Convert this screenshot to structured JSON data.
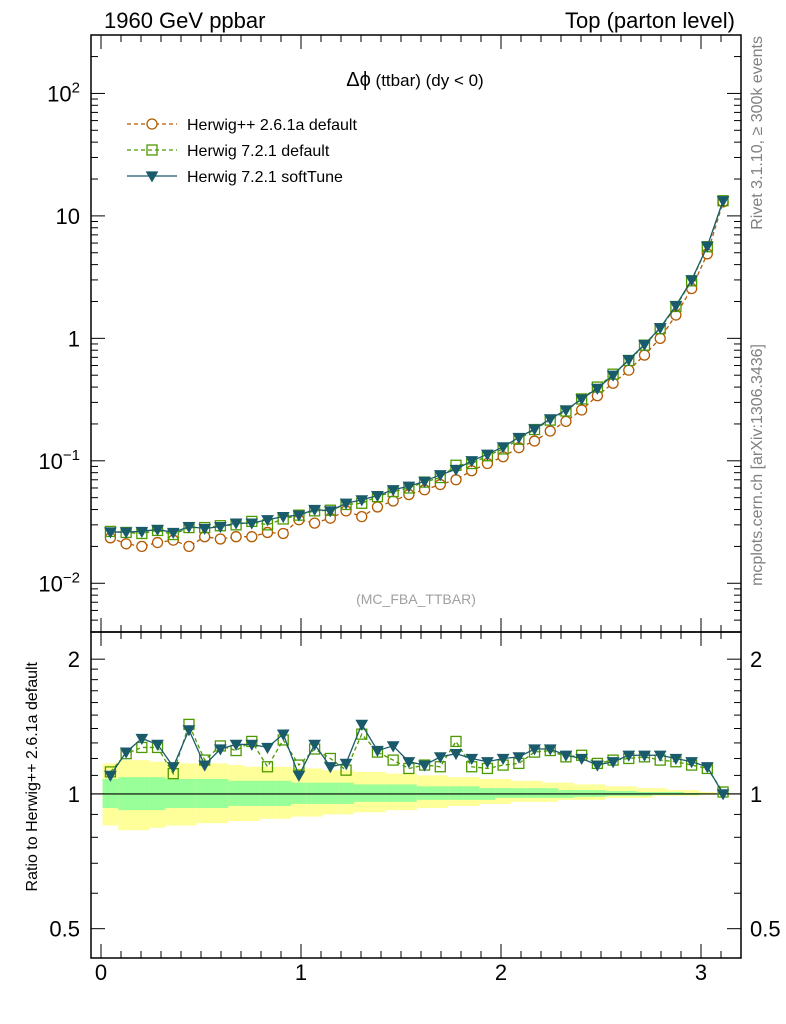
{
  "header": {
    "left": "1960 GeV ppbar",
    "right": "Top (parton level)"
  },
  "side": {
    "top": "Rivet 3.1.10, ≥ 300k events",
    "bottom": "mcplots.cern.ch [arXiv:1306.3436]"
  },
  "plot_title_main": "Δϕ",
  "plot_title_rest": " (ttbar) (dy < 0)",
  "analysis": "(MC_FBA_TTBAR)",
  "ratio_ylabel": "Ratio to Herwig++ 2.6.1a default",
  "chart_data": [
    {
      "type": "line",
      "yscale": "log",
      "ylim": [
        0.004,
        300
      ],
      "xlim": [
        -0.05,
        3.2
      ],
      "yticks": [
        {
          "value": 0.01,
          "base": "10",
          "exp": "−2"
        },
        {
          "value": 0.1,
          "base": "10",
          "exp": "−1"
        },
        {
          "value": 1,
          "base": "1",
          "exp": ""
        },
        {
          "value": 10,
          "base": "10",
          "exp": ""
        },
        {
          "value": 100,
          "base": "10",
          "exp": "2"
        }
      ],
      "legend_position": "top-left",
      "series": [
        {
          "name": "Herwig++ 2.6.1a default",
          "color": "#b35900",
          "marker": "circle-open",
          "dash": "dashed",
          "x": [
            0.0471,
            0.1257,
            0.2042,
            0.2827,
            0.3613,
            0.4398,
            0.5184,
            0.5969,
            0.6754,
            0.754,
            0.8325,
            0.9111,
            0.9896,
            1.0681,
            1.1467,
            1.2252,
            1.3038,
            1.3823,
            1.4608,
            1.5394,
            1.6179,
            1.6965,
            1.775,
            1.8535,
            1.9321,
            2.0106,
            2.0892,
            2.1677,
            2.2462,
            2.3248,
            2.4033,
            2.4819,
            2.5604,
            2.6389,
            2.7175,
            2.796,
            2.8746,
            2.9531,
            3.0316,
            3.1102
          ],
          "y": [
            0.0235,
            0.021,
            0.02,
            0.0215,
            0.0225,
            0.02,
            0.024,
            0.023,
            0.024,
            0.024,
            0.026,
            0.0255,
            0.033,
            0.031,
            0.034,
            0.039,
            0.035,
            0.042,
            0.047,
            0.053,
            0.058,
            0.064,
            0.07,
            0.083,
            0.095,
            0.108,
            0.128,
            0.145,
            0.175,
            0.21,
            0.26,
            0.34,
            0.43,
            0.55,
            0.73,
            1.0,
            1.55,
            2.55,
            4.9,
            13.0
          ]
        },
        {
          "name": "Herwig 7.2.1 default",
          "color": "#4d9900",
          "marker": "square-open",
          "dash": "dashed",
          "x": [
            0.0471,
            0.1257,
            0.2042,
            0.2827,
            0.3613,
            0.4398,
            0.5184,
            0.5969,
            0.6754,
            0.754,
            0.8325,
            0.9111,
            0.9896,
            1.0681,
            1.1467,
            1.2252,
            1.3038,
            1.3823,
            1.4608,
            1.5394,
            1.6179,
            1.6965,
            1.775,
            1.8535,
            1.9321,
            2.0106,
            2.0892,
            2.1677,
            2.2462,
            2.3248,
            2.4033,
            2.4819,
            2.5604,
            2.6389,
            2.7175,
            2.796,
            2.8746,
            2.9531,
            3.0316,
            3.1102
          ],
          "y": [
            0.0265,
            0.026,
            0.0255,
            0.027,
            0.025,
            0.0285,
            0.0285,
            0.0295,
            0.03,
            0.032,
            0.03,
            0.0335,
            0.036,
            0.039,
            0.0395,
            0.044,
            0.045,
            0.051,
            0.056,
            0.06,
            0.067,
            0.073,
            0.092,
            0.095,
            0.11,
            0.125,
            0.15,
            0.18,
            0.215,
            0.255,
            0.32,
            0.4,
            0.51,
            0.66,
            0.88,
            1.2,
            1.82,
            2.95,
            5.6,
            13.3
          ]
        },
        {
          "name": "Herwig 7.2.1 softTune",
          "color": "#1a5b6b",
          "marker": "triangle-down",
          "dash": "solid",
          "x": [
            0.0471,
            0.1257,
            0.2042,
            0.2827,
            0.3613,
            0.4398,
            0.5184,
            0.5969,
            0.6754,
            0.754,
            0.8325,
            0.9111,
            0.9896,
            1.0681,
            1.1467,
            1.2252,
            1.3038,
            1.3823,
            1.4608,
            1.5394,
            1.6179,
            1.6965,
            1.775,
            1.8535,
            1.9321,
            2.0106,
            2.0892,
            2.1677,
            2.2462,
            2.3248,
            2.4033,
            2.4819,
            2.5604,
            2.6389,
            2.7175,
            2.796,
            2.8746,
            2.9531,
            3.0316,
            3.1102
          ],
          "y": [
            0.0262,
            0.0262,
            0.0265,
            0.0275,
            0.026,
            0.029,
            0.028,
            0.029,
            0.031,
            0.031,
            0.033,
            0.035,
            0.036,
            0.04,
            0.039,
            0.045,
            0.048,
            0.052,
            0.058,
            0.062,
            0.068,
            0.077,
            0.085,
            0.1,
            0.113,
            0.13,
            0.155,
            0.182,
            0.22,
            0.26,
            0.32,
            0.39,
            0.5,
            0.67,
            0.89,
            1.22,
            1.85,
            3.0,
            5.65,
            13.3
          ]
        }
      ]
    },
    {
      "type": "line",
      "yscale": "log",
      "ylim": [
        0.43,
        2.3
      ],
      "xlim": [
        -0.05,
        3.2
      ],
      "xticks": [
        0,
        1,
        2,
        3
      ],
      "yticks": [
        0.5,
        1,
        2
      ],
      "reference_line": 1,
      "bands": [
        {
          "color": "#ffff99",
          "lower": [
            0.85,
            0.83,
            0.83,
            0.84,
            0.85,
            0.85,
            0.86,
            0.86,
            0.87,
            0.87,
            0.88,
            0.88,
            0.89,
            0.89,
            0.9,
            0.9,
            0.91,
            0.91,
            0.92,
            0.92,
            0.93,
            0.93,
            0.94,
            0.94,
            0.95,
            0.95,
            0.96,
            0.96,
            0.96,
            0.97,
            0.97,
            0.97,
            0.98,
            0.98,
            0.98,
            0.99,
            0.99,
            0.99,
            0.995,
            1.0
          ],
          "upper": [
            1.17,
            1.19,
            1.19,
            1.18,
            1.18,
            1.17,
            1.17,
            1.17,
            1.16,
            1.15,
            1.15,
            1.15,
            1.14,
            1.14,
            1.13,
            1.13,
            1.12,
            1.12,
            1.11,
            1.11,
            1.1,
            1.1,
            1.09,
            1.09,
            1.08,
            1.08,
            1.07,
            1.07,
            1.06,
            1.06,
            1.05,
            1.05,
            1.04,
            1.04,
            1.03,
            1.03,
            1.02,
            1.02,
            1.01,
            1.0
          ]
        },
        {
          "color": "#99ff99",
          "lower": [
            0.93,
            0.92,
            0.92,
            0.92,
            0.93,
            0.93,
            0.93,
            0.93,
            0.94,
            0.94,
            0.94,
            0.94,
            0.95,
            0.95,
            0.95,
            0.95,
            0.96,
            0.96,
            0.96,
            0.96,
            0.97,
            0.97,
            0.97,
            0.97,
            0.97,
            0.98,
            0.98,
            0.98,
            0.98,
            0.98,
            0.985,
            0.985,
            0.99,
            0.99,
            0.99,
            0.995,
            0.995,
            0.995,
            0.998,
            1.0
          ],
          "upper": [
            1.08,
            1.09,
            1.09,
            1.09,
            1.08,
            1.08,
            1.08,
            1.08,
            1.07,
            1.07,
            1.07,
            1.07,
            1.06,
            1.06,
            1.06,
            1.06,
            1.05,
            1.05,
            1.05,
            1.05,
            1.04,
            1.04,
            1.04,
            1.04,
            1.03,
            1.03,
            1.03,
            1.03,
            1.03,
            1.02,
            1.02,
            1.02,
            1.015,
            1.015,
            1.01,
            1.01,
            1.01,
            1.005,
            1.003,
            1.0
          ]
        }
      ],
      "series": [
        {
          "name": "Herwig 7.2.1 default",
          "color": "#4d9900",
          "marker": "square-open",
          "dash": "dashed",
          "y": [
            1.12,
            1.23,
            1.27,
            1.27,
            1.11,
            1.43,
            1.19,
            1.28,
            1.25,
            1.31,
            1.15,
            1.32,
            1.16,
            1.26,
            1.2,
            1.13,
            1.36,
            1.24,
            1.19,
            1.14,
            1.16,
            1.15,
            1.31,
            1.15,
            1.14,
            1.16,
            1.17,
            1.24,
            1.25,
            1.21,
            1.22,
            1.17,
            1.19,
            1.2,
            1.21,
            1.19,
            1.18,
            1.16,
            1.14,
            1.01
          ]
        },
        {
          "name": "Herwig 7.2.1 softTune",
          "color": "#1a5b6b",
          "marker": "triangle-down",
          "dash": "solid",
          "y": [
            1.1,
            1.24,
            1.33,
            1.29,
            1.15,
            1.39,
            1.16,
            1.26,
            1.29,
            1.29,
            1.27,
            1.36,
            1.1,
            1.29,
            1.15,
            1.17,
            1.43,
            1.25,
            1.28,
            1.18,
            1.16,
            1.21,
            1.23,
            1.2,
            1.18,
            1.2,
            1.21,
            1.26,
            1.26,
            1.22,
            1.2,
            1.16,
            1.18,
            1.22,
            1.22,
            1.22,
            1.2,
            1.18,
            1.15,
            1.0
          ]
        }
      ]
    }
  ]
}
